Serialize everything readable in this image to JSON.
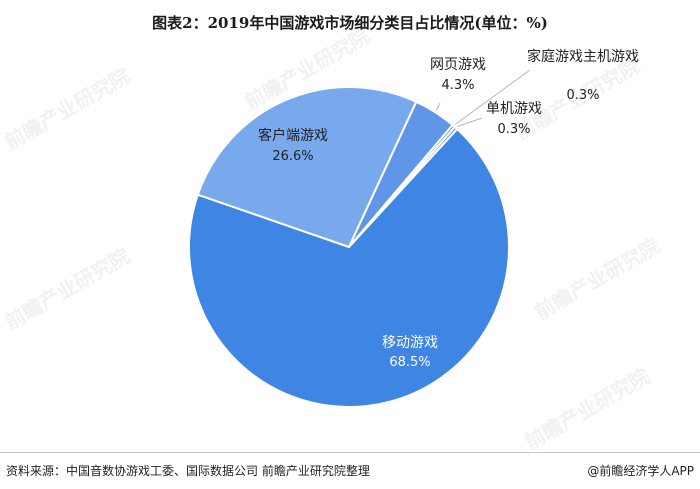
{
  "title": "图表2：2019年中国游戏市场细分类目占比情况(单位：%)",
  "source": "资料来源：中国音数协游戏工委、国际数据公司 前瞻产业研究院整理",
  "brand": "@前瞻经济学人APP",
  "watermark": "前瞻产业研究院",
  "colors": {
    "mobile": "#3f85e3",
    "client": "#78a9ec",
    "web": "#5f96e7",
    "console": "#4a8be2",
    "single": "#5890e6"
  },
  "chart_data": {
    "type": "pie",
    "title": "图表2：2019年中国游戏市场细分类目占比情况(单位：%)",
    "slices": [
      {
        "label": "移动游戏",
        "value": 68.5,
        "value_text": "68.5%"
      },
      {
        "label": "客户端游戏",
        "value": 26.6,
        "value_text": "26.6%"
      },
      {
        "label": "网页游戏",
        "value": 4.3,
        "value_text": "4.3%"
      },
      {
        "label": "家庭游戏主机游戏",
        "value": 0.3,
        "value_text": "0.3%"
      },
      {
        "label": "单机游戏",
        "value": 0.3,
        "value_text": "0.3%"
      }
    ]
  }
}
